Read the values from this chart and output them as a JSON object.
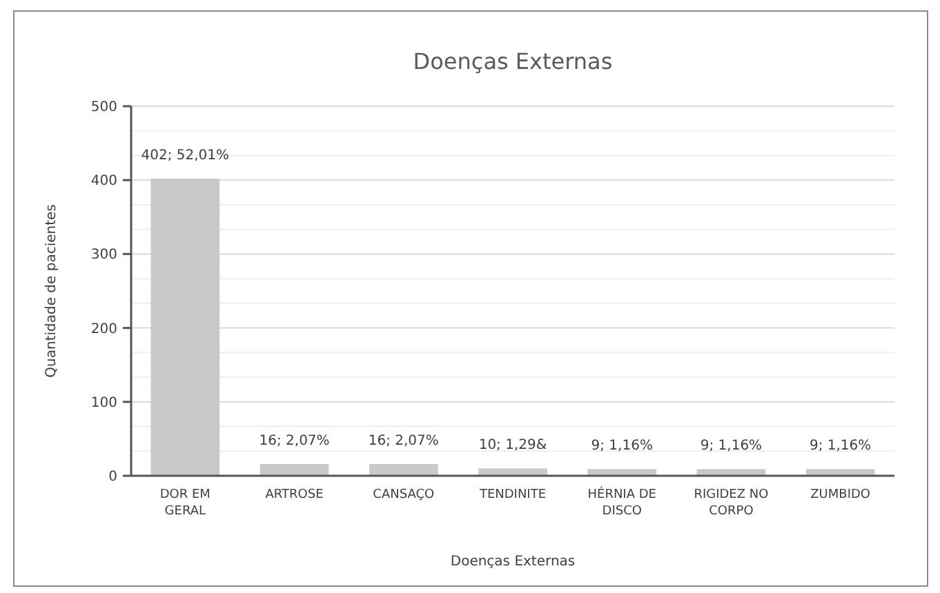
{
  "chart_data": {
    "type": "bar",
    "title": "Doenças Externas",
    "xlabel": "Doenças Externas",
    "ylabel": "Quantidade de pacientes",
    "categories": [
      "DOR EM GERAL",
      "ARTROSE",
      "CANSAÇO",
      "TENDINITE",
      "HÉRNIA DE DISCO",
      "RIGIDEZ NO CORPO",
      "ZUMBIDO"
    ],
    "values": [
      402,
      16,
      16,
      10,
      9,
      9,
      9
    ],
    "value_labels": [
      "402; 52,01%",
      "16; 2,07%",
      "16; 2,07%",
      "10; 1,29&",
      "9; 1,16%",
      "9; 1,16%",
      "9; 1,16%"
    ],
    "color": "#c9c9c9",
    "ylim": [
      0,
      500
    ],
    "yticks": [
      0,
      {
        "value": 33.33,
        "label": null
      },
      {
        "value": 66.67,
        "label": null
      },
      100,
      {
        "value": 133.33,
        "label": null
      },
      {
        "value": 166.67,
        "label": null
      },
      200,
      {
        "value": 233.33,
        "label": null
      },
      {
        "value": 266.67,
        "label": null
      },
      300,
      {
        "value": 333.33,
        "label": null
      },
      {
        "value": 366.67,
        "label": null
      },
      400,
      {
        "value": 433.33,
        "label": null
      },
      {
        "value": 466.67,
        "label": null
      },
      500
    ],
    "grid": true
  }
}
